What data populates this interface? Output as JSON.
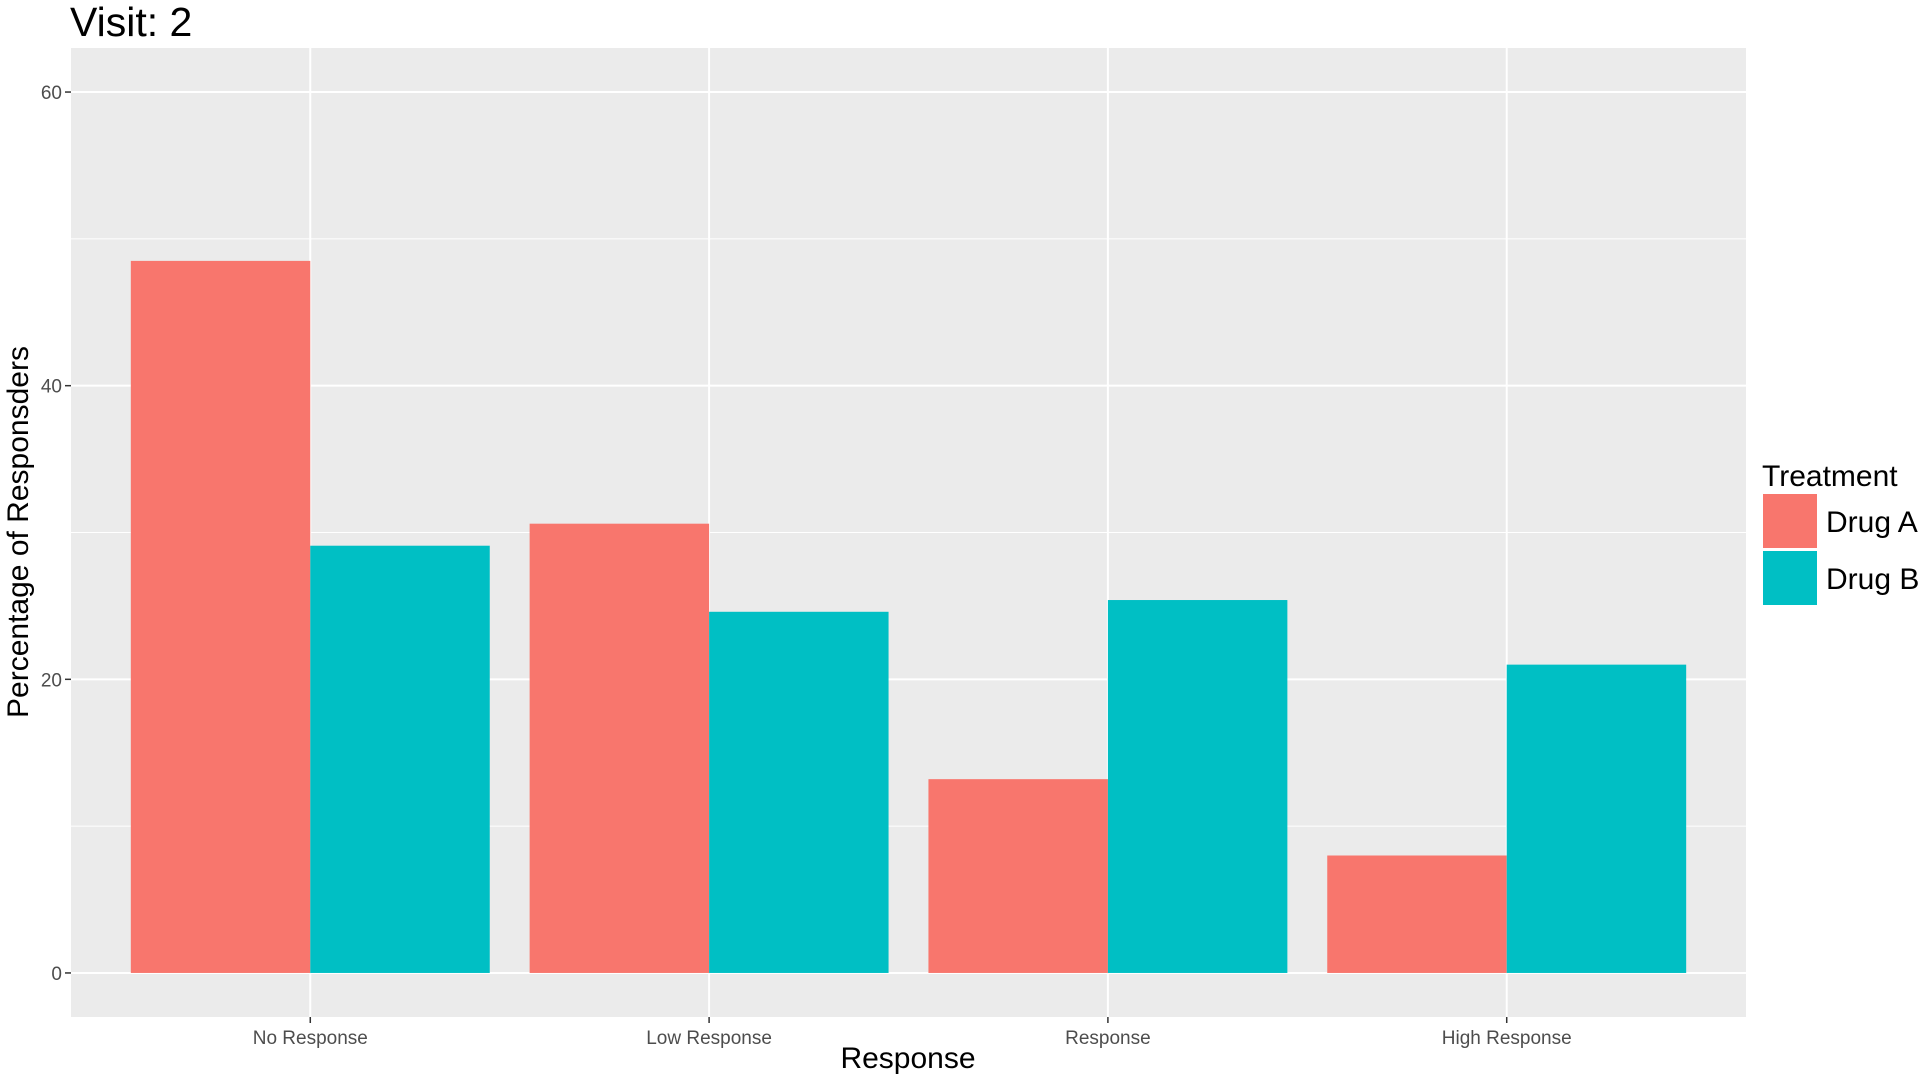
{
  "chart_data": {
    "type": "bar",
    "title": "Visit: 2",
    "xlabel": "Response",
    "ylabel": "Percentage of Responsders",
    "categories": [
      "No Response",
      "Low Response",
      "Response",
      "High Response"
    ],
    "series": [
      {
        "name": "Drug A",
        "color": "#F8766D",
        "values": [
          48.5,
          30.6,
          13.2,
          8.0
        ]
      },
      {
        "name": "Drug B",
        "color": "#00BFC4",
        "values": [
          29.1,
          24.6,
          25.4,
          21.0
        ]
      }
    ],
    "ylim": [
      -3,
      63
    ],
    "yticks": [
      0,
      20,
      40,
      60
    ],
    "ytick_labels": [
      "0",
      "20",
      "40",
      "60"
    ],
    "grid": true,
    "panel_background": "#EBEBEB",
    "grid_color": "#FFFFFF",
    "legend": {
      "title": "Treatment",
      "position": "right"
    }
  }
}
